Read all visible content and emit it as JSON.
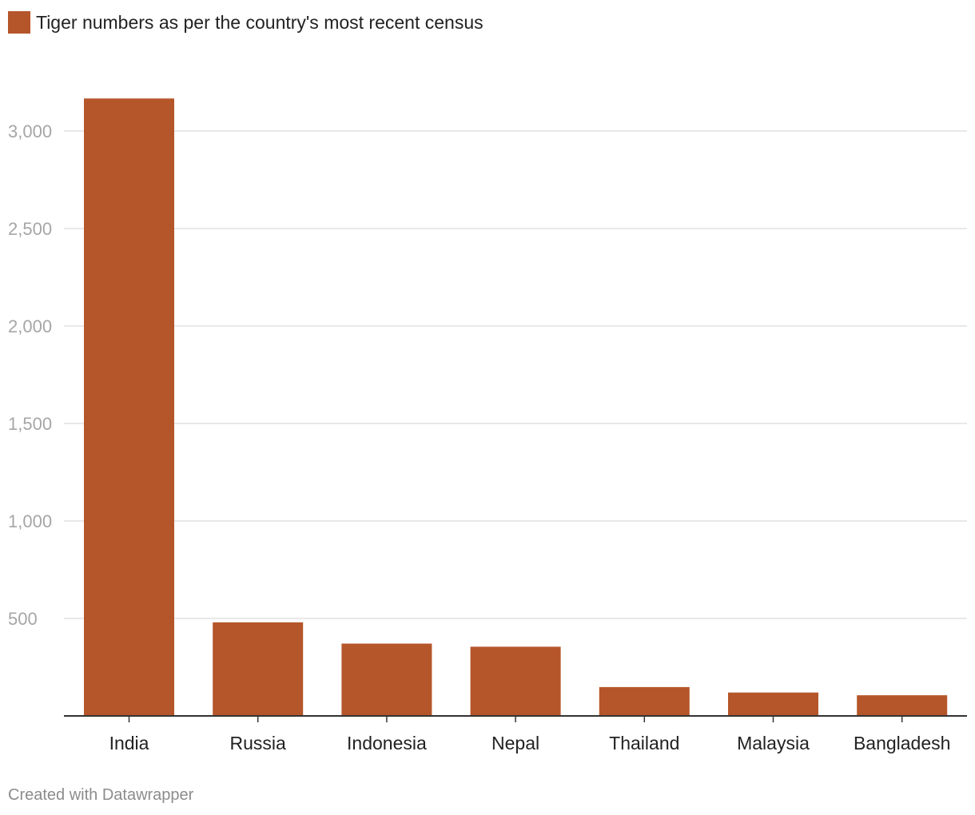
{
  "chart_data": {
    "type": "bar",
    "categories": [
      "India",
      "Russia",
      "Indonesia",
      "Nepal",
      "Thailand",
      "Malaysia",
      "Bangladesh"
    ],
    "series": [
      {
        "name": "Tiger numbers as per the country's most recent census",
        "values": [
          3167,
          480,
          371,
          355,
          148,
          120,
          106
        ],
        "color": "#b5562a"
      }
    ],
    "y_ticks": [
      {
        "value": 500,
        "label": "500"
      },
      {
        "value": 1000,
        "label": "1,000"
      },
      {
        "value": 1500,
        "label": "1,500"
      },
      {
        "value": 2000,
        "label": "2,000"
      },
      {
        "value": 2500,
        "label": "2,500"
      },
      {
        "value": 3000,
        "label": "3,000"
      }
    ],
    "ylim": [
      0,
      3000
    ],
    "grid": true,
    "legend_position": "top-left"
  },
  "credit": "Created with Datawrapper"
}
